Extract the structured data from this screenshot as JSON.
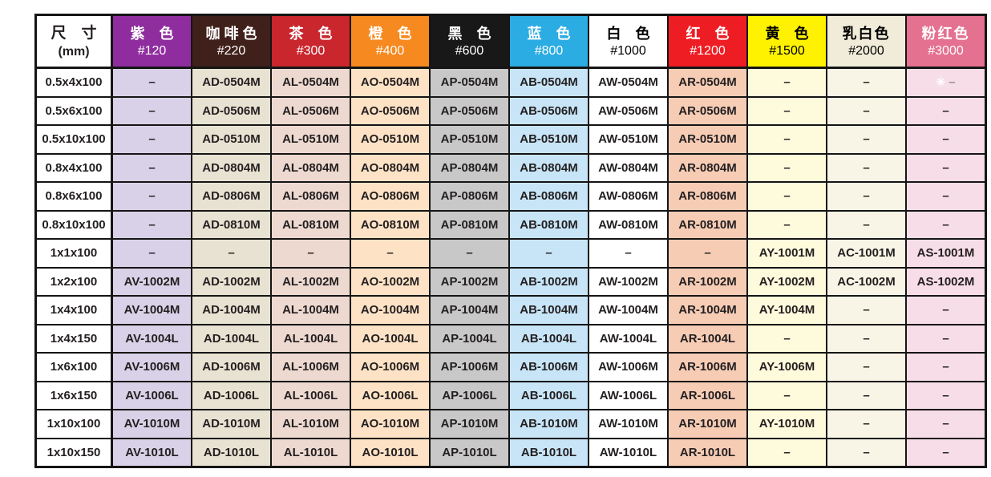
{
  "table": {
    "size_header": {
      "line1": "尺　寸",
      "line2": "(mm)"
    },
    "dash": "–",
    "special_marker": "✳",
    "border_color": "#151515",
    "columns": [
      {
        "key": "purple",
        "name": "紫　色",
        "grit": "#120",
        "header_bg": "#8F2D9F",
        "header_fg": "#FFFFFF",
        "cell_bg": "#D9D1E7",
        "tight": false
      },
      {
        "key": "coffee",
        "name": "咖 啡 色",
        "grit": "#220",
        "header_bg": "#40201A",
        "header_fg": "#FFFFFF",
        "cell_bg": "#E8E2D2",
        "tight": false
      },
      {
        "key": "tea",
        "name": "茶　色",
        "grit": "#300",
        "header_bg": "#C9262D",
        "header_fg": "#FFFFFF",
        "cell_bg": "#EDD9D0",
        "tight": false
      },
      {
        "key": "orange",
        "name": "橙　色",
        "grit": "#400",
        "header_bg": "#F6891F",
        "header_fg": "#FFFFFF",
        "cell_bg": "#FDE2C5",
        "tight": false
      },
      {
        "key": "black",
        "name": "黑　色",
        "grit": "#600",
        "header_bg": "#181818",
        "header_fg": "#FFFFFF",
        "cell_bg": "#C8C8C8",
        "tight": false
      },
      {
        "key": "blue",
        "name": "蓝　色",
        "grit": "#800",
        "header_bg": "#2BACE2",
        "header_fg": "#FFFFFF",
        "cell_bg": "#C8E5F8",
        "tight": false
      },
      {
        "key": "white",
        "name": "白　色",
        "grit": "#1000",
        "header_bg": "#FFFFFF",
        "header_fg": "#000000",
        "cell_bg": "#FFFFFF",
        "tight": false
      },
      {
        "key": "red",
        "name": "红　色",
        "grit": "#1200",
        "header_bg": "#EE1D23",
        "header_fg": "#FFFFFF",
        "cell_bg": "#F6CCB5",
        "tight": false
      },
      {
        "key": "yellow",
        "name": "黄　色",
        "grit": "#1500",
        "header_bg": "#FFF200",
        "header_fg": "#000000",
        "cell_bg": "#FEFADC",
        "tight": false
      },
      {
        "key": "cream",
        "name": "乳白色",
        "grit": "#2000",
        "header_bg": "#F1ECD9",
        "header_fg": "#000000",
        "cell_bg": "#F8F5E6",
        "tight": true
      },
      {
        "key": "pink",
        "name": "粉红色",
        "grit": "#3000",
        "header_bg": "#E4718F",
        "header_fg": "#FFFFFF",
        "cell_bg": "#F7DDE7",
        "tight": true
      }
    ],
    "rows": [
      {
        "size": "0.5x4x100",
        "cells": [
          "–",
          "AD-0504M",
          "AL-0504M",
          "AO-0504M",
          "AP-0504M",
          "AB-0504M",
          "AW-0504M",
          "AR-0504M",
          "–",
          "–",
          "✳–"
        ]
      },
      {
        "size": "0.5x6x100",
        "cells": [
          "–",
          "AD-0506M",
          "AL-0506M",
          "AO-0506M",
          "AP-0506M",
          "AB-0506M",
          "AW-0506M",
          "AR-0506M",
          "–",
          "–",
          "–"
        ]
      },
      {
        "size": "0.5x10x100",
        "cells": [
          "–",
          "AD-0510M",
          "AL-0510M",
          "AO-0510M",
          "AP-0510M",
          "AB-0510M",
          "AW-0510M",
          "AR-0510M",
          "–",
          "–",
          "–"
        ]
      },
      {
        "size": "0.8x4x100",
        "cells": [
          "–",
          "AD-0804M",
          "AL-0804M",
          "AO-0804M",
          "AP-0804M",
          "AB-0804M",
          "AW-0804M",
          "AR-0804M",
          "–",
          "–",
          "–"
        ]
      },
      {
        "size": "0.8x6x100",
        "cells": [
          "–",
          "AD-0806M",
          "AL-0806M",
          "AO-0806M",
          "AP-0806M",
          "AB-0806M",
          "AW-0806M",
          "AR-0806M",
          "–",
          "–",
          "–"
        ]
      },
      {
        "size": "0.8x10x100",
        "cells": [
          "–",
          "AD-0810M",
          "AL-0810M",
          "AO-0810M",
          "AP-0810M",
          "AB-0810M",
          "AW-0810M",
          "AR-0810M",
          "–",
          "–",
          "–"
        ]
      },
      {
        "size": "1x1x100",
        "cells": [
          "–",
          "–",
          "–",
          "–",
          "–",
          "–",
          "–",
          "–",
          "AY-1001M",
          "AC-1001M",
          "AS-1001M"
        ]
      },
      {
        "size": "1x2x100",
        "cells": [
          "AV-1002M",
          "AD-1002M",
          "AL-1002M",
          "AO-1002M",
          "AP-1002M",
          "AB-1002M",
          "AW-1002M",
          "AR-1002M",
          "AY-1002M",
          "AC-1002M",
          "AS-1002M"
        ]
      },
      {
        "size": "1x4x100",
        "cells": [
          "AV-1004M",
          "AD-1004M",
          "AL-1004M",
          "AO-1004M",
          "AP-1004M",
          "AB-1004M",
          "AW-1004M",
          "AR-1004M",
          "AY-1004M",
          "–",
          "–"
        ]
      },
      {
        "size": "1x4x150",
        "cells": [
          "AV-1004L",
          "AD-1004L",
          "AL-1004L",
          "AO-1004L",
          "AP-1004L",
          "AB-1004L",
          "AW-1004L",
          "AR-1004L",
          "–",
          "–",
          "–"
        ]
      },
      {
        "size": "1x6x100",
        "cells": [
          "AV-1006M",
          "AD-1006M",
          "AL-1006M",
          "AO-1006M",
          "AP-1006M",
          "AB-1006M",
          "AW-1006M",
          "AR-1006M",
          "AY-1006M",
          "–",
          "–"
        ]
      },
      {
        "size": "1x6x150",
        "cells": [
          "AV-1006L",
          "AD-1006L",
          "AL-1006L",
          "AO-1006L",
          "AP-1006L",
          "AB-1006L",
          "AW-1006L",
          "AR-1006L",
          "–",
          "–",
          "–"
        ]
      },
      {
        "size": "1x10x100",
        "cells": [
          "AV-1010M",
          "AD-1010M",
          "AL-1010M",
          "AO-1010M",
          "AP-1010M",
          "AB-1010M",
          "AW-1010M",
          "AR-1010M",
          "AY-1010M",
          "–",
          "–"
        ]
      },
      {
        "size": "1x10x150",
        "cells": [
          "AV-1010L",
          "AD-1010L",
          "AL-1010L",
          "AO-1010L",
          "AP-1010L",
          "AB-1010L",
          "AW-1010L",
          "AR-1010L",
          "–",
          "–",
          "–"
        ]
      }
    ]
  }
}
